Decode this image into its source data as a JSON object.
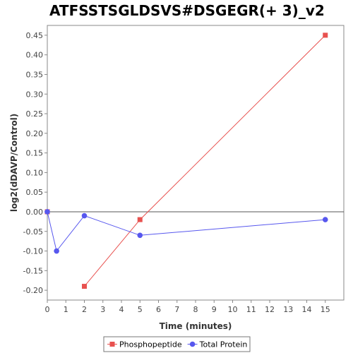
{
  "chart_data": {
    "type": "line",
    "title": "ATFSSTSGLDSVS#DSGEGR(+ 3)_v2",
    "xlabel": "Time (minutes)",
    "ylabel": "log2(dDAVP/Control)",
    "xlim": [
      0,
      16
    ],
    "ylim": [
      -0.225,
      0.475
    ],
    "xticks": [
      0,
      1,
      2,
      3,
      4,
      5,
      6,
      7,
      8,
      9,
      10,
      11,
      12,
      13,
      14,
      15
    ],
    "xtick_labels": [
      "0",
      "1",
      "2",
      "3",
      "4",
      "5",
      "6",
      "7",
      "8",
      "9",
      "10",
      "11",
      "12",
      "13",
      "14",
      "15"
    ],
    "yticks": [
      -0.2,
      -0.15,
      -0.1,
      -0.05,
      0.0,
      0.05,
      0.1,
      0.15,
      0.2,
      0.25,
      0.3,
      0.35,
      0.4,
      0.45
    ],
    "ytick_labels": [
      "-0.20",
      "-0.15",
      "-0.10",
      "-0.05",
      "0.00",
      "0.05",
      "0.10",
      "0.15",
      "0.20",
      "0.25",
      "0.30",
      "0.35",
      "0.40",
      "0.45"
    ],
    "grid": false,
    "zero_line": true,
    "legend_position": "bottom-center",
    "series": [
      {
        "name": "Phosphopeptide",
        "color": "#e8514f",
        "marker": "square",
        "points": [
          [
            0,
            0.0
          ],
          [
            2,
            -0.19
          ],
          [
            5,
            -0.02
          ],
          [
            15,
            0.45
          ]
        ],
        "line_points": [
          [
            2,
            -0.19
          ],
          [
            5,
            -0.02
          ],
          [
            15,
            0.45
          ]
        ]
      },
      {
        "name": "Total Protein",
        "color": "#5757ee",
        "marker": "circle",
        "points": [
          [
            0,
            0.0
          ],
          [
            0.5,
            -0.1
          ],
          [
            2,
            -0.01
          ],
          [
            5,
            -0.06
          ],
          [
            15,
            -0.02
          ]
        ],
        "line_points": [
          [
            0,
            0.0
          ],
          [
            0.5,
            -0.1
          ],
          [
            2,
            -0.01
          ],
          [
            5,
            -0.06
          ],
          [
            15,
            -0.02
          ]
        ]
      }
    ]
  }
}
